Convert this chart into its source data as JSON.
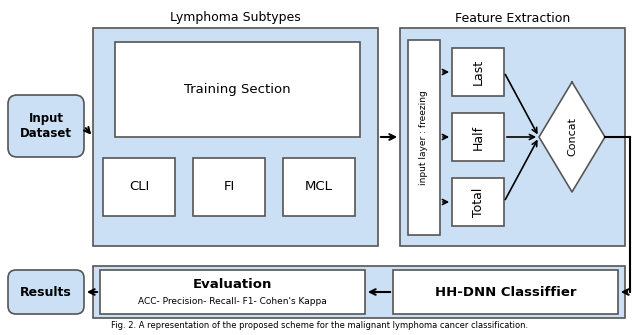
{
  "bg_color": "#ffffff",
  "light_blue": "#cce0f5",
  "box_fill": "#ffffff",
  "box_edge": "#555555",
  "section_label_lymphoma": "Lymphoma Subtypes",
  "section_label_feature": "Feature Extraction",
  "input_label": "Input\nDataset",
  "training_label": "Training Section",
  "cli_label": "CLI",
  "fi_label": "FI",
  "mcl_label": "MCL",
  "freeze_label": "input layer : freezing",
  "last_label": "Last",
  "half_label": "Half",
  "total_label": "Total",
  "concat_label": "Concat",
  "eval_title": "Evaluation",
  "eval_sub": "ACC- Precision- Recall- F1- Cohen's Kappa",
  "hh_dnn_label": "HH-DNN Classiffier",
  "results_label": "Results",
  "fig_caption": "Fig. 2. A representation of the proposed scheme for the malignant lymphoma cancer classification.",
  "figsize": [
    6.4,
    3.35
  ],
  "dpi": 100
}
